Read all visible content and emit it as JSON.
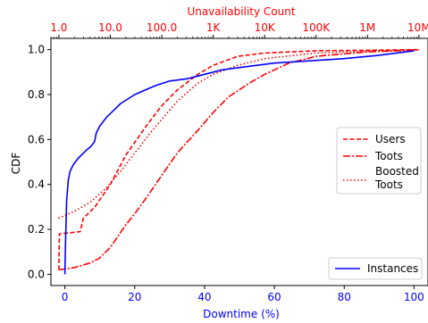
{
  "chart_data": {
    "type": "line",
    "xlabel": "Downtime (%)",
    "ylabel": "CDF",
    "top_xlabel": "Unavailability Count",
    "xlim": [
      -4,
      104
    ],
    "ylim": [
      -0.05,
      1.05
    ],
    "grid": false,
    "x_ticks": [
      0,
      20,
      40,
      60,
      80,
      100
    ],
    "x_tick_labels": [
      "0",
      "20",
      "40",
      "60",
      "80",
      "100"
    ],
    "y_ticks": [
      0.0,
      0.2,
      0.4,
      0.6,
      0.8,
      1.0
    ],
    "y_tick_labels": [
      "0.0",
      "0.2",
      "0.4",
      "0.6",
      "0.8",
      "1.0"
    ],
    "top_axis": {
      "scale": "log",
      "range": [
        0.7,
        15000000
      ],
      "ticks": [
        1,
        10,
        100,
        1000,
        10000,
        100000,
        1000000,
        10000000
      ],
      "tick_labels": [
        "1.0",
        "10.0",
        "100.0",
        "1K",
        "10K",
        "100K",
        "1M",
        "10M"
      ],
      "color": "#ff0000"
    },
    "colors": {
      "axis_bottom": "#0000ff",
      "axis_top": "#ff0000",
      "instances": "#0000ff",
      "users": "#ff0000",
      "toots": "#ff0000",
      "boosted": "#ff0000"
    },
    "legends": [
      {
        "placement": "center-right",
        "entries": [
          "users",
          "toots",
          "boosted"
        ]
      },
      {
        "placement": "lower-right",
        "entries": [
          "instances"
        ]
      }
    ],
    "series": [
      {
        "id": "users",
        "name": "Users",
        "axis": "top",
        "style": "dashed",
        "points": [
          [
            1,
            0.02
          ],
          [
            1.02,
            0.18
          ],
          [
            2.6,
            0.19
          ],
          [
            3.0,
            0.25
          ],
          [
            5,
            0.3
          ],
          [
            10,
            0.4
          ],
          [
            20,
            0.53
          ],
          [
            50,
            0.66
          ],
          [
            100,
            0.75
          ],
          [
            200,
            0.82
          ],
          [
            500,
            0.89
          ],
          [
            1000,
            0.93
          ],
          [
            3000,
            0.97
          ],
          [
            10000,
            0.985
          ],
          [
            100000,
            0.995
          ],
          [
            1000000,
            0.997
          ],
          [
            10000000,
            1.0
          ]
        ]
      },
      {
        "id": "toots",
        "name": "Toots",
        "axis": "top",
        "style": "dashdot",
        "points": [
          [
            1,
            0.02
          ],
          [
            2,
            0.03
          ],
          [
            4,
            0.05
          ],
          [
            6,
            0.07
          ],
          [
            10,
            0.12
          ],
          [
            20,
            0.22
          ],
          [
            30,
            0.27
          ],
          [
            50,
            0.34
          ],
          [
            100,
            0.44
          ],
          [
            200,
            0.54
          ],
          [
            500,
            0.64
          ],
          [
            1000,
            0.72
          ],
          [
            2000,
            0.79
          ],
          [
            5000,
            0.85
          ],
          [
            10000,
            0.89
          ],
          [
            30000,
            0.94
          ],
          [
            100000,
            0.97
          ],
          [
            1000000,
            0.99
          ],
          [
            10000000,
            0.998
          ]
        ]
      },
      {
        "id": "boosted",
        "name": "Boosted\nToots",
        "label_lines": [
          "Boosted",
          "Toots"
        ],
        "axis": "top",
        "style": "dotted",
        "points": [
          [
            0.98,
            0.25
          ],
          [
            2,
            0.28
          ],
          [
            4,
            0.32
          ],
          [
            8,
            0.38
          ],
          [
            16,
            0.46
          ],
          [
            30,
            0.54
          ],
          [
            60,
            0.63
          ],
          [
            100,
            0.69
          ],
          [
            200,
            0.77
          ],
          [
            500,
            0.85
          ],
          [
            1000,
            0.89
          ],
          [
            3000,
            0.93
          ],
          [
            10000,
            0.96
          ],
          [
            100000,
            0.985
          ],
          [
            1000000,
            0.993
          ],
          [
            10000000,
            1.0
          ]
        ]
      },
      {
        "id": "instances",
        "name": "Instances",
        "axis": "bottom",
        "style": "solid",
        "points": [
          [
            0,
            0.0
          ],
          [
            0.2,
            0.15
          ],
          [
            0.5,
            0.33
          ],
          [
            1,
            0.42
          ],
          [
            1.5,
            0.46
          ],
          [
            2.5,
            0.49
          ],
          [
            4,
            0.52
          ],
          [
            6,
            0.55
          ],
          [
            7.5,
            0.57
          ],
          [
            8.5,
            0.59
          ],
          [
            9,
            0.63
          ],
          [
            10,
            0.66
          ],
          [
            12,
            0.7
          ],
          [
            14,
            0.73
          ],
          [
            16,
            0.76
          ],
          [
            18,
            0.78
          ],
          [
            20,
            0.8
          ],
          [
            23,
            0.82
          ],
          [
            26,
            0.84
          ],
          [
            30,
            0.86
          ],
          [
            35,
            0.87
          ],
          [
            40,
            0.89
          ],
          [
            45,
            0.91
          ],
          [
            50,
            0.92
          ],
          [
            55,
            0.93
          ],
          [
            60,
            0.94
          ],
          [
            70,
            0.95
          ],
          [
            80,
            0.96
          ],
          [
            90,
            0.975
          ],
          [
            100,
            0.995
          ]
        ]
      }
    ]
  }
}
